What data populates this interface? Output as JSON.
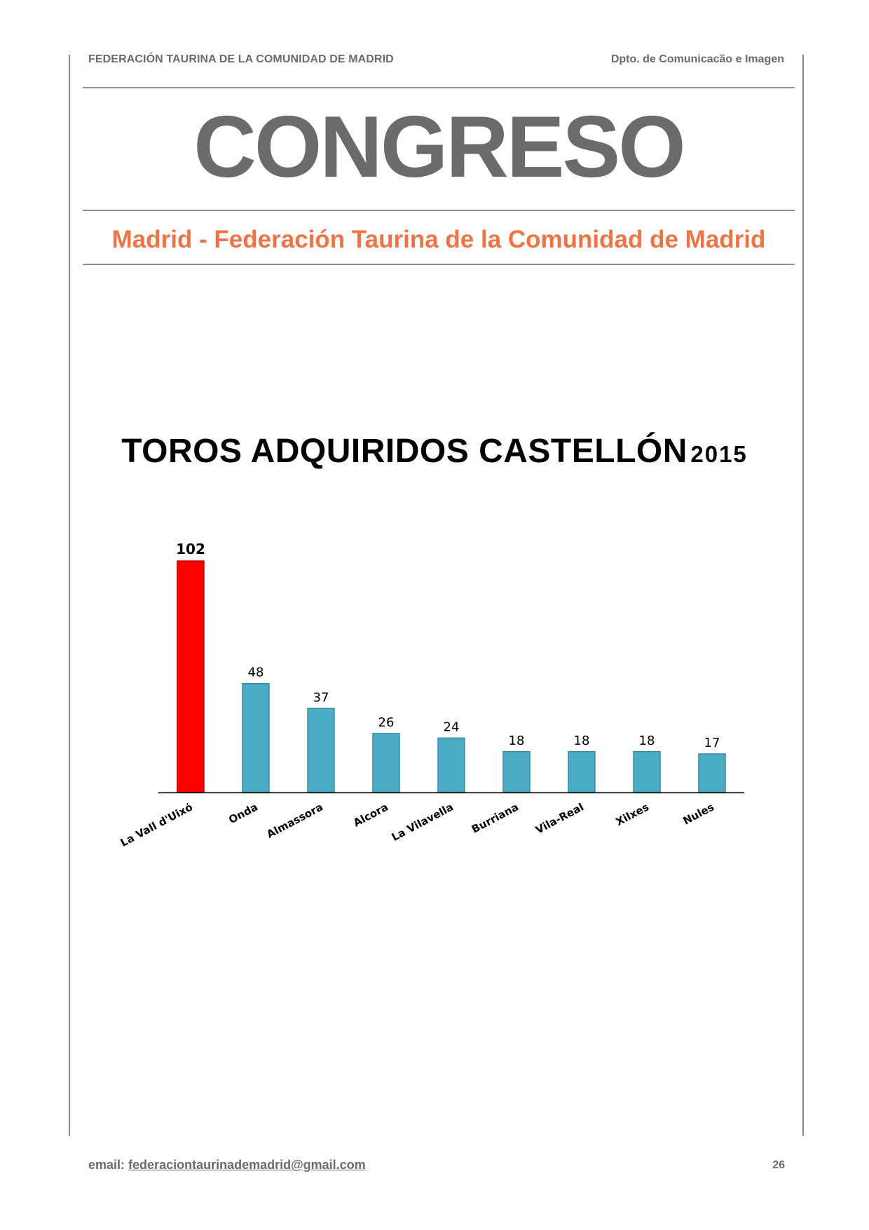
{
  "header": {
    "left": "FEDERACIÓN TAURINA DE LA COMUNIDAD DE MADRID",
    "right": "Dpto. de Comunicacão e Imagen"
  },
  "title": "CONGRESO",
  "subtitle": "Madrid - Federación Taurina de la Comunidad de Madrid",
  "chart_data": {
    "type": "bar",
    "title": "TOROS ADQUIRIDOS CASTELLÓN",
    "title_year": "2015",
    "categories": [
      "La Vall d'Uixó",
      "Onda",
      "Almassora",
      "Alcora",
      "La Vilavella",
      "Burriana",
      "Vila-Real",
      "Xilxes",
      "Nules"
    ],
    "values": [
      102,
      48,
      37,
      26,
      24,
      18,
      18,
      18,
      17
    ],
    "value_labels": [
      "102",
      "48",
      "37",
      "26",
      "24",
      "18",
      "18",
      "18",
      "17"
    ],
    "highlight_index": 0,
    "colors": {
      "highlight": "#ff0000",
      "default": "#4bacc6",
      "bar_border": "#3a8aa3",
      "highlight_border": "#c00000",
      "axis": "#000000"
    },
    "ylim": [
      0,
      102
    ],
    "grid": false,
    "legend": "none"
  },
  "footer": {
    "email_label": "email:",
    "email": "federaciontaurinademadrid@gmail.com",
    "page_number": "26"
  }
}
